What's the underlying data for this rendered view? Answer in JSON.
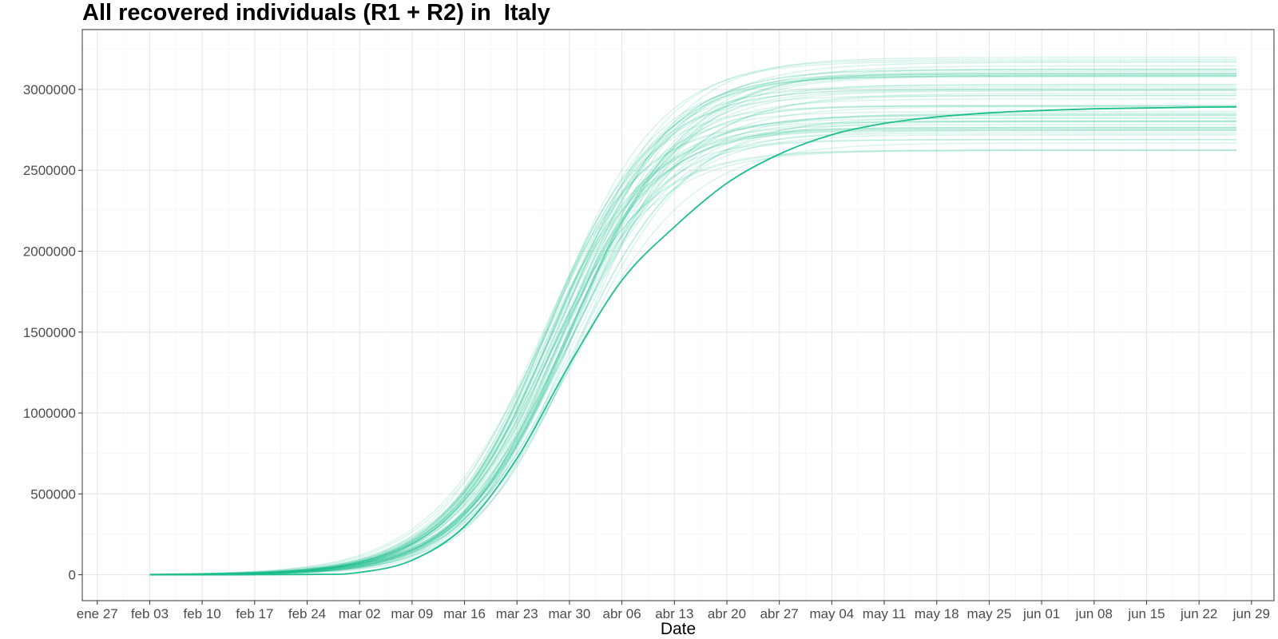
{
  "chart_data": {
    "type": "line",
    "title": "All recovered individuals (R1 + R2) in  Italy",
    "xlabel": "Date",
    "ylabel": "",
    "x_tick_labels": [
      "ene 27",
      "feb 03",
      "feb 10",
      "feb 17",
      "feb 24",
      "mar 02",
      "mar 09",
      "mar 16",
      "mar 23",
      "mar 30",
      "abr 06",
      "abr 13",
      "abr 20",
      "abr 27",
      "may 04",
      "may 11",
      "may 18",
      "may 25",
      "jun 01",
      "jun 08",
      "jun 15",
      "jun 22",
      "jun 29"
    ],
    "y_ticks": [
      0,
      500000,
      1000000,
      1500000,
      2000000,
      2500000,
      3000000
    ],
    "y_tick_labels": [
      "0",
      "500000",
      "1000000",
      "1500000",
      "2000000",
      "2500000",
      "3000000"
    ],
    "xlim": [
      "2020-01-25",
      "2020-07-02"
    ],
    "ylim": [
      -160000,
      3370000
    ],
    "x_start": "2020-02-03",
    "x_end": "2020-06-27",
    "grid": true,
    "legend": "none",
    "color": "#1dbf8d",
    "main_series": {
      "x": [
        "2020-02-03",
        "2020-02-24",
        "2020-03-02",
        "2020-03-09",
        "2020-03-16",
        "2020-03-23",
        "2020-03-30",
        "2020-04-06",
        "2020-04-13",
        "2020-04-20",
        "2020-04-27",
        "2020-05-04",
        "2020-05-11",
        "2020-05-18",
        "2020-05-25",
        "2020-06-01",
        "2020-06-08",
        "2020-06-15",
        "2020-06-22",
        "2020-06-27"
      ],
      "y": [
        0,
        2000,
        15000,
        90000,
        300000,
        720000,
        1300000,
        1820000,
        2150000,
        2420000,
        2600000,
        2720000,
        2790000,
        2830000,
        2855000,
        2870000,
        2880000,
        2885000,
        2890000,
        2892000
      ]
    },
    "ensemble": {
      "count": 60,
      "final_values_range": [
        2620000,
        3200000
      ],
      "midpoint_date_range": [
        "2020-03-25",
        "2020-03-31"
      ]
    }
  }
}
